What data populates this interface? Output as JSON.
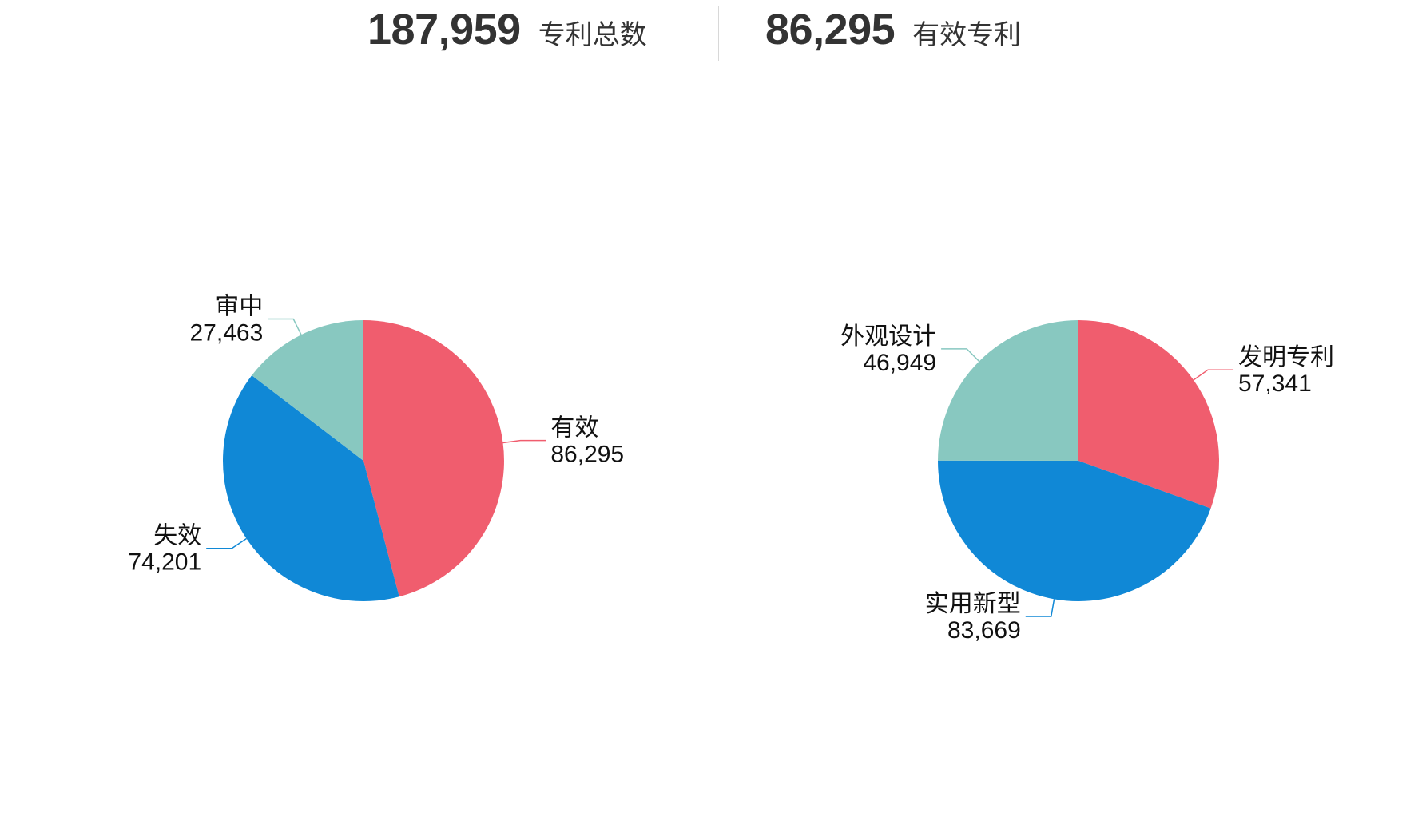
{
  "summary": {
    "total": {
      "value": "187,959",
      "label": "专利总数"
    },
    "valid": {
      "value": "86,295",
      "label": "有效专利"
    }
  },
  "colors": {
    "red": "#f05d6e",
    "blue": "#1088d6",
    "teal": "#88c8c0"
  },
  "chart_data": [
    {
      "type": "pie",
      "title": "",
      "start": "12 o'clock, clockwise",
      "slices": [
        {
          "label": "有效",
          "value": 86295,
          "display": "86,295",
          "color": "#f05d6e"
        },
        {
          "label": "失效",
          "value": 74201,
          "display": "74,201",
          "color": "#1088d6"
        },
        {
          "label": "审中",
          "value": 27463,
          "display": "27,463",
          "color": "#88c8c0"
        }
      ]
    },
    {
      "type": "pie",
      "title": "",
      "start": "12 o'clock, clockwise",
      "slices": [
        {
          "label": "发明专利",
          "value": 57341,
          "display": "57,341",
          "color": "#f05d6e"
        },
        {
          "label": "实用新型",
          "value": 83669,
          "display": "83,669",
          "color": "#1088d6"
        },
        {
          "label": "外观设计",
          "value": 46949,
          "display": "46,949",
          "color": "#88c8c0"
        }
      ]
    }
  ]
}
